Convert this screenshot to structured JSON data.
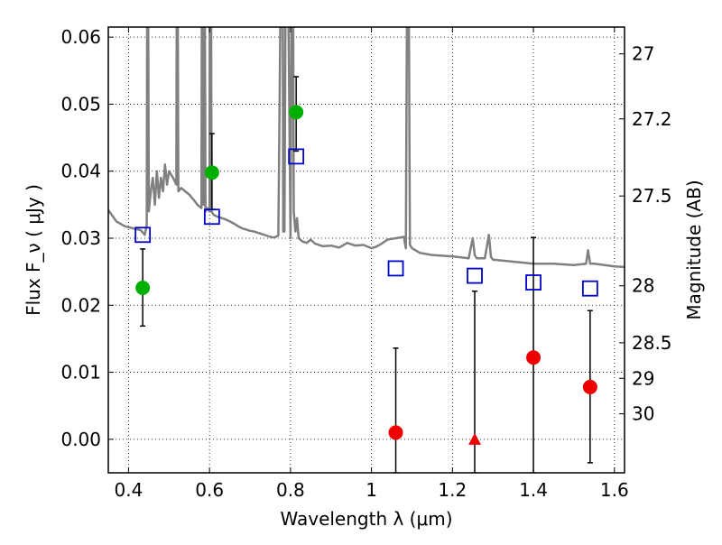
{
  "chart_data": {
    "type": "scatter",
    "xlabel": "Wavelength  λ (μm)",
    "ylabel": "Flux  F_ν  ( μJy )",
    "ylabel_right": "Magnitude (AB)",
    "xlim": [
      0.35,
      1.625
    ],
    "ylim": [
      -0.005,
      0.0615
    ],
    "grid": true,
    "x_ticks": [
      0.4,
      0.6,
      0.8,
      1.0,
      1.2,
      1.4,
      1.6
    ],
    "x_tick_labels": [
      "0.4",
      "0.6",
      "0.8",
      "1",
      "1.2",
      "1.4",
      "1.6"
    ],
    "y_ticks": [
      0.0,
      0.01,
      0.02,
      0.03,
      0.04,
      0.05,
      0.06
    ],
    "y_tick_labels": [
      "0.00",
      "0.01",
      "0.02",
      "0.03",
      "0.04",
      "0.05",
      "0.06"
    ],
    "right_ticks": [
      {
        "label": "27",
        "flux": 0.0575
      },
      {
        "label": "27.2",
        "flux": 0.0478
      },
      {
        "label": "27.5",
        "flux": 0.0363
      },
      {
        "label": "28",
        "flux": 0.0229
      },
      {
        "label": "28.5",
        "flux": 0.0144
      },
      {
        "label": "29",
        "flux": 0.0091
      },
      {
        "label": "30",
        "flux": 0.0038
      }
    ],
    "colors": {
      "detection": "#00b000",
      "upper_limit": "#ee0000",
      "model": "#0000cc",
      "sed": "#808080",
      "error_bar": "#000000"
    },
    "series": [
      {
        "kind": "detections",
        "marker": "circle",
        "points": [
          {
            "x": 0.435,
            "y": 0.0226,
            "err_low": 0.0169,
            "err_high": 0.0284
          },
          {
            "x": 0.606,
            "y": 0.0398,
            "err_low": 0.0343,
            "err_high": 0.0456
          },
          {
            "x": 0.814,
            "y": 0.0488,
            "err_low": 0.043,
            "err_high": 0.0541
          }
        ]
      },
      {
        "kind": "non_detections",
        "points": [
          {
            "x": 1.06,
            "y": 0.001,
            "err_low": -0.005,
            "err_high": 0.0136,
            "marker": "circle"
          },
          {
            "x": 1.255,
            "y": 0.0,
            "err_low": -0.005,
            "err_high": 0.0221,
            "marker": "triangle"
          },
          {
            "x": 1.4,
            "y": 0.0122,
            "err_low": -0.005,
            "err_high": 0.0301,
            "marker": "circle"
          },
          {
            "x": 1.54,
            "y": 0.0078,
            "err_low": -0.0035,
            "err_high": 0.0192,
            "marker": "circle"
          }
        ]
      },
      {
        "kind": "model_photometry",
        "marker": "open-square",
        "points": [
          {
            "x": 0.435,
            "y": 0.0305
          },
          {
            "x": 0.606,
            "y": 0.0332
          },
          {
            "x": 0.814,
            "y": 0.0422
          },
          {
            "x": 1.06,
            "y": 0.0255
          },
          {
            "x": 1.255,
            "y": 0.0244
          },
          {
            "x": 1.4,
            "y": 0.0234
          },
          {
            "x": 1.54,
            "y": 0.0225
          }
        ]
      },
      {
        "kind": "sed_curve",
        "x": [
          0.35,
          0.37,
          0.39,
          0.41,
          0.43,
          0.44,
          0.445,
          0.447,
          0.45,
          0.455,
          0.46,
          0.465,
          0.47,
          0.475,
          0.48,
          0.485,
          0.49,
          0.495,
          0.5,
          0.51,
          0.518,
          0.52,
          0.523,
          0.53,
          0.54,
          0.55,
          0.56,
          0.57,
          0.58,
          0.582,
          0.585,
          0.587,
          0.59,
          0.595,
          0.6,
          0.601,
          0.603,
          0.605,
          0.61,
          0.62,
          0.63,
          0.64,
          0.65,
          0.66,
          0.67,
          0.68,
          0.69,
          0.7,
          0.71,
          0.72,
          0.73,
          0.74,
          0.75,
          0.76,
          0.77,
          0.78,
          0.782,
          0.785,
          0.79,
          0.8,
          0.805,
          0.808,
          0.812,
          0.816,
          0.82,
          0.83,
          0.84,
          0.85,
          0.86,
          0.87,
          0.88,
          0.9,
          0.92,
          0.94,
          0.96,
          0.98,
          1.0,
          1.01,
          1.02,
          1.04,
          1.06,
          1.08,
          1.085,
          1.09,
          1.095,
          1.1,
          1.12,
          1.15,
          1.2,
          1.24,
          1.25,
          1.255,
          1.26,
          1.28,
          1.29,
          1.295,
          1.3,
          1.35,
          1.4,
          1.45,
          1.5,
          1.53,
          1.535,
          1.54,
          1.55,
          1.6,
          1.625
        ],
        "y": [
          0.0342,
          0.0325,
          0.0318,
          0.0315,
          0.0312,
          0.0305,
          0.032,
          0.095,
          0.034,
          0.037,
          0.039,
          0.035,
          0.04,
          0.036,
          0.039,
          0.037,
          0.041,
          0.038,
          0.04,
          0.039,
          0.038,
          0.095,
          0.037,
          0.0375,
          0.037,
          0.0365,
          0.0358,
          0.035,
          0.0345,
          0.095,
          0.035,
          0.095,
          0.034,
          0.0345,
          0.034,
          0.095,
          0.095,
          0.034,
          0.0335,
          0.0332,
          0.033,
          0.0328,
          0.0325,
          0.0322,
          0.0318,
          0.0315,
          0.0313,
          0.0311,
          0.031,
          0.0308,
          0.0306,
          0.0304,
          0.0302,
          0.0301,
          0.0304,
          0.095,
          0.031,
          0.031,
          0.095,
          0.03,
          0.095,
          0.034,
          0.031,
          0.033,
          0.03,
          0.0295,
          0.0293,
          0.0298,
          0.0292,
          0.029,
          0.0288,
          0.0289,
          0.0286,
          0.0293,
          0.0289,
          0.029,
          0.0285,
          0.0287,
          0.029,
          0.0298,
          0.03,
          0.0302,
          0.0285,
          0.095,
          0.029,
          0.0285,
          0.0278,
          0.0275,
          0.0273,
          0.027,
          0.03,
          0.0275,
          0.027,
          0.027,
          0.0305,
          0.0272,
          0.0268,
          0.0265,
          0.0262,
          0.0262,
          0.026,
          0.0262,
          0.0282,
          0.0262,
          0.0262,
          0.0258,
          0.0257
        ]
      }
    ]
  }
}
